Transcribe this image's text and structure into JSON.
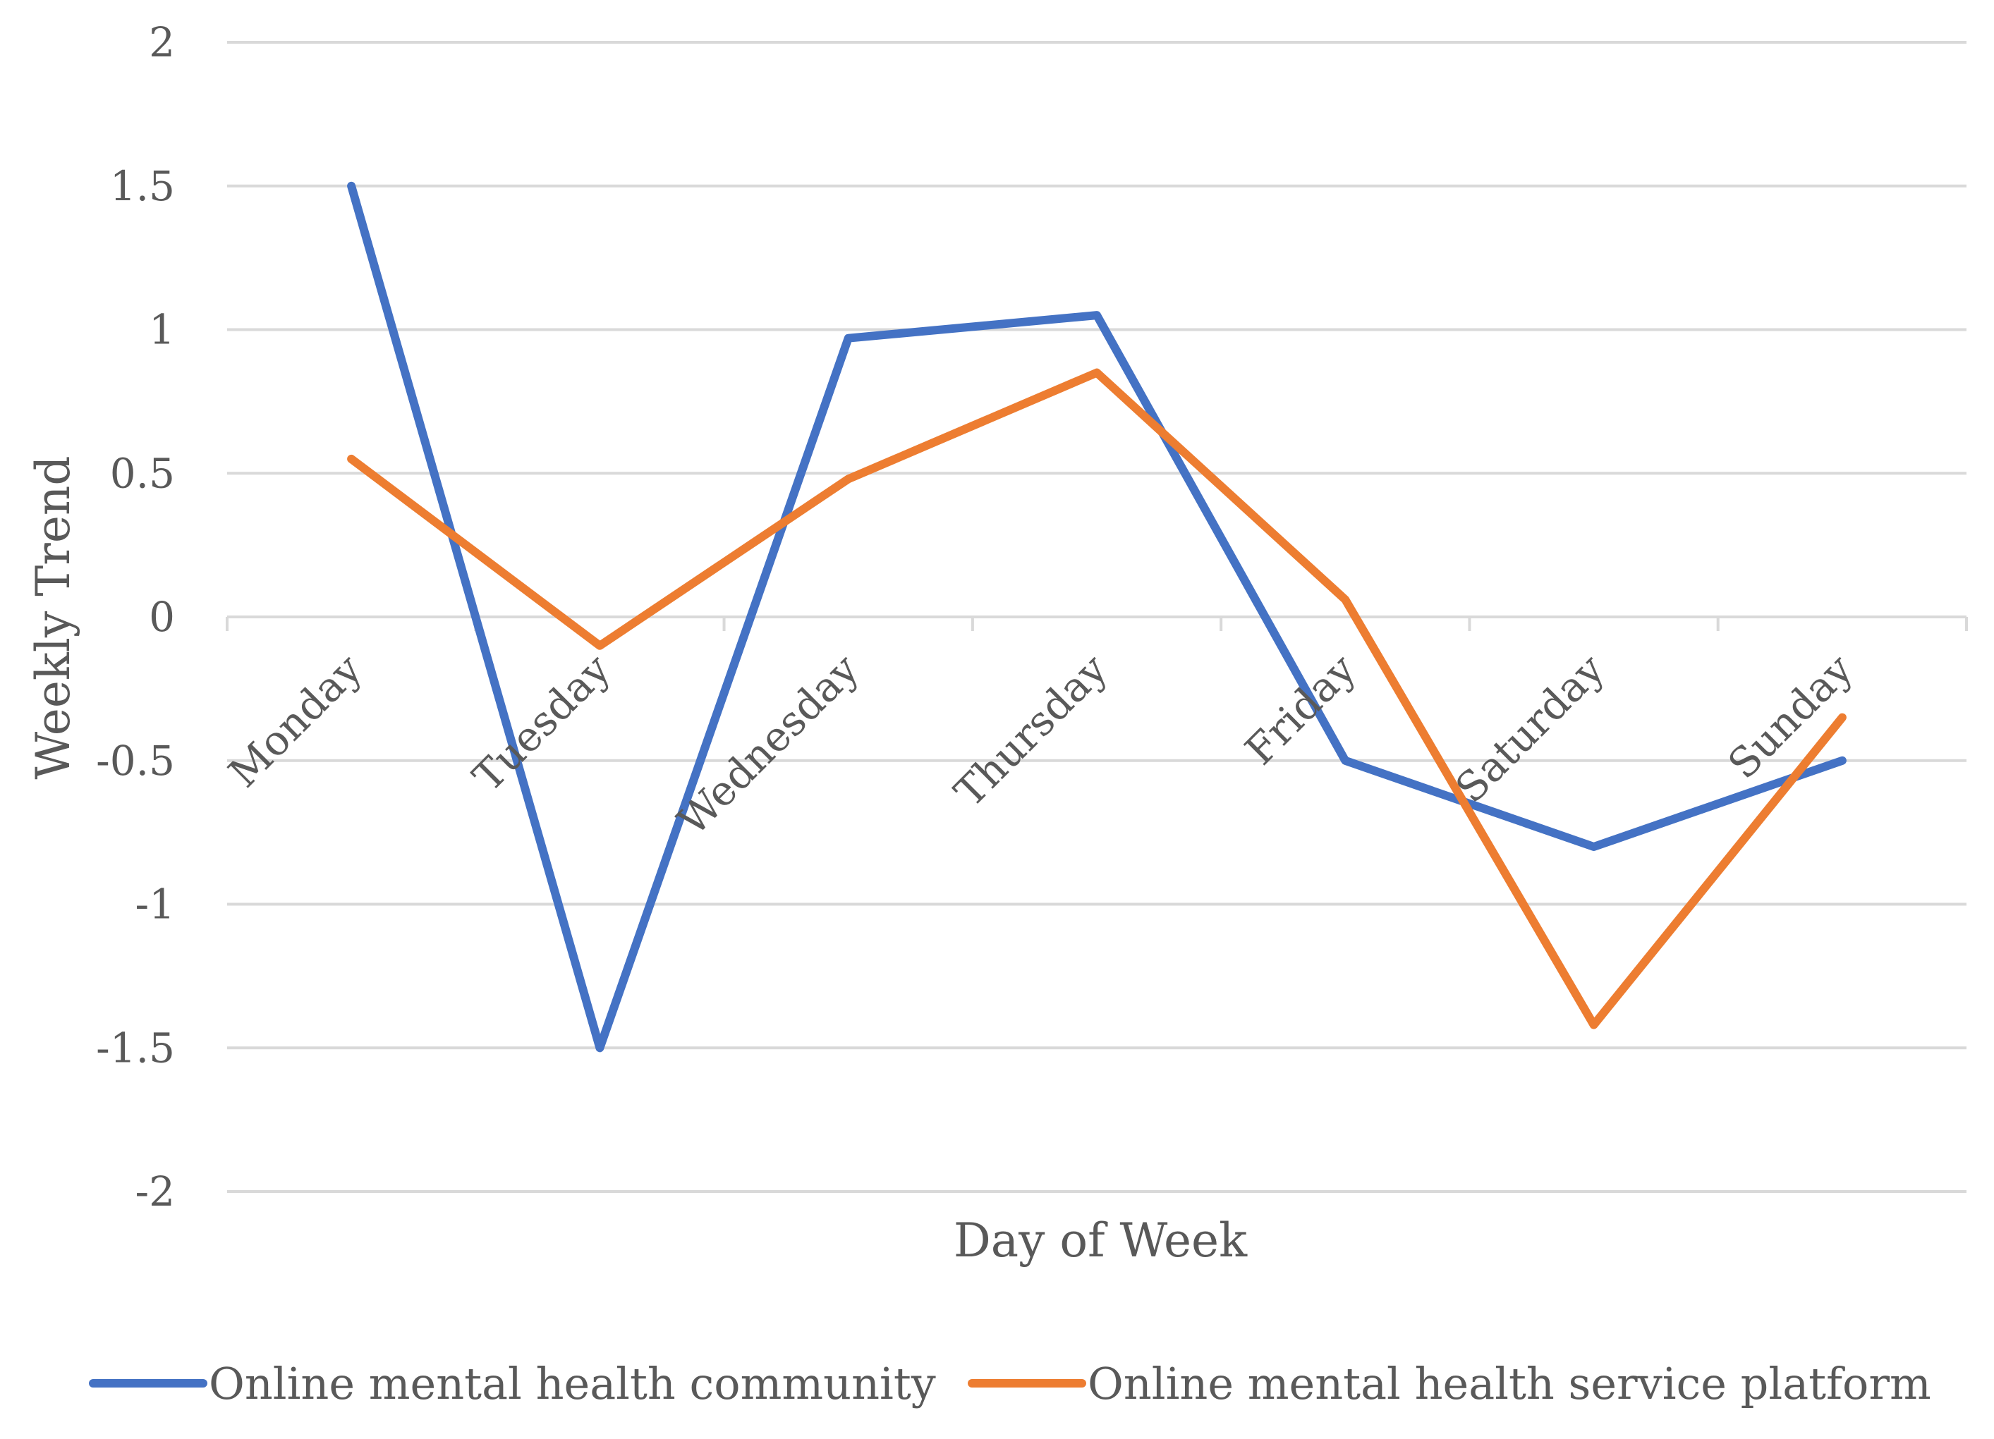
{
  "chart_data": {
    "type": "line",
    "title": "",
    "xlabel": "Day of Week",
    "ylabel": "Weekly Trend",
    "categories": [
      "Monday",
      "Tuesday",
      "Wednesday",
      "Thursday",
      "Friday",
      "Saturday",
      "Sunday"
    ],
    "ylim": [
      -2,
      2
    ],
    "yticks": [
      2,
      1.5,
      1,
      0.5,
      0,
      -0.5,
      -1,
      -1.5,
      -2
    ],
    "ytick_labels": [
      "2",
      "1.5",
      "1",
      "0.5",
      "0",
      "-0.5",
      "-1",
      "-1.5",
      "-2"
    ],
    "grid": true,
    "legend_position": "bottom",
    "series": [
      {
        "name": "Online mental health community",
        "color": "#4472c4",
        "values": [
          1.5,
          -1.5,
          0.97,
          1.05,
          -0.5,
          -0.8,
          -0.5
        ]
      },
      {
        "name": "Online mental health service platform",
        "color": "#ed7d31",
        "values": [
          0.55,
          -0.1,
          0.48,
          0.85,
          0.06,
          -1.42,
          -0.35
        ]
      }
    ]
  }
}
